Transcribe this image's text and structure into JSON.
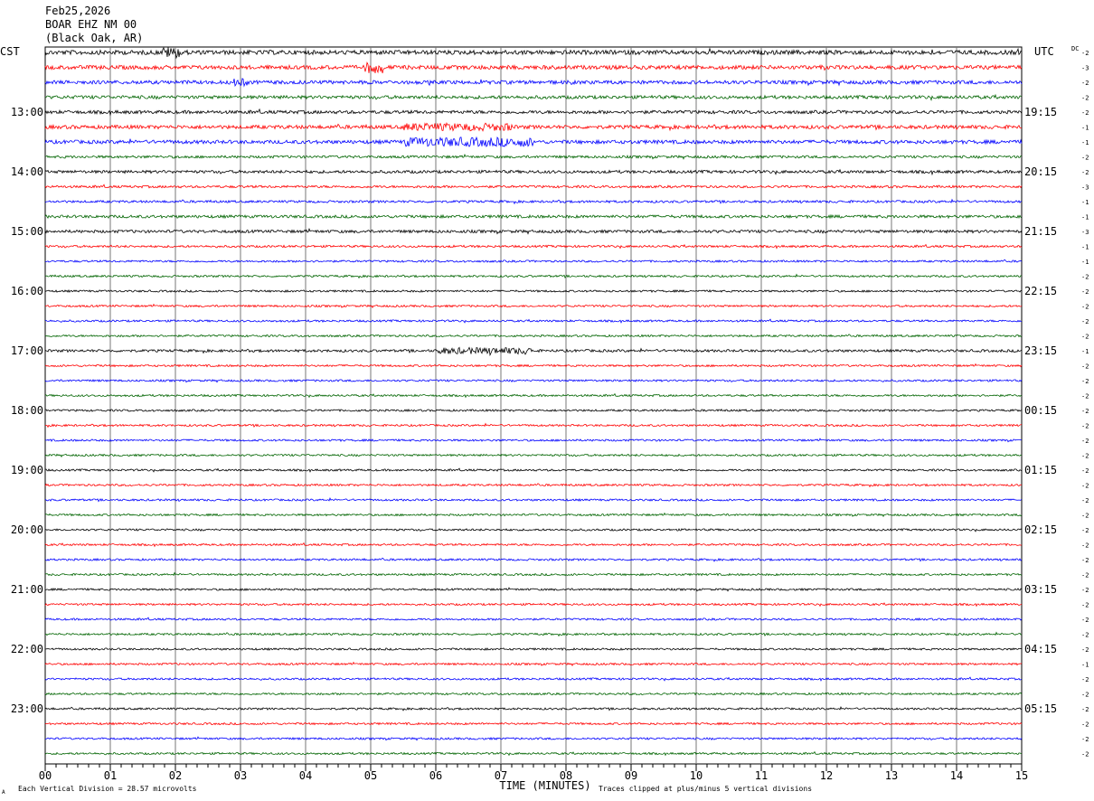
{
  "header": {
    "date": "Feb25,2026",
    "station": "BOAR EHZ NM 00",
    "location": "(Black Oak, AR)"
  },
  "labels": {
    "left_tz": "CST",
    "right_tz": "UTC",
    "dc": "DC",
    "x_axis_title": "TIME (MINUTES)",
    "footer_left": "Each Vertical Division =   28.57 microvolts",
    "footer_right": "Traces clipped at plus/minus 5 vertical divisions",
    "footer_mark": "A"
  },
  "colors": [
    "#000000",
    "#ff0000",
    "#0000ff",
    "#006400"
  ],
  "chart_data": {
    "type": "line",
    "description_free": true,
    "x": {
      "label": "TIME (MINUTES)",
      "range": [
        0,
        15
      ],
      "ticks": [
        "00",
        "01",
        "02",
        "03",
        "04",
        "05",
        "06",
        "07",
        "08",
        "09",
        "10",
        "11",
        "12",
        "13",
        "14",
        "15"
      ]
    },
    "traces_per_hour": 4,
    "trace_count": 48,
    "left_hour_labels": [
      "13:00",
      "14:00",
      "15:00",
      "16:00",
      "17:00",
      "18:00",
      "19:00",
      "20:00",
      "21:00",
      "22:00",
      "23:00"
    ],
    "right_hour_labels": [
      "19:15",
      "20:15",
      "21:15",
      "22:15",
      "23:15",
      "00:15",
      "01:15",
      "02:15",
      "03:15",
      "04:15",
      "05:15"
    ],
    "dc_offsets": [
      "-2",
      "-3",
      "-2",
      "-2",
      "-2",
      "-1",
      "-1",
      "-2",
      "-2",
      "-3",
      "-1",
      "-1",
      "-3",
      "-1",
      "-1",
      "-2",
      "-2",
      "-2",
      "-2",
      "-2",
      "-1",
      "-2",
      "-2",
      "-2",
      "-2",
      "-2",
      "-2",
      "-2",
      "-2",
      "-2",
      "-2",
      "-2",
      "-2",
      "-2",
      "-2",
      "-2",
      "-2",
      "-2",
      "-2",
      "-2",
      "-2",
      "-1",
      "-2",
      "-2",
      "-2",
      "-2",
      "-2",
      "-2"
    ],
    "amplitude_scale": [
      2.4,
      2.2,
      2.0,
      1.8,
      1.8,
      2.0,
      2.0,
      1.4,
      1.6,
      1.3,
      1.3,
      1.6,
      1.6,
      1.2,
      1.1,
      1.1,
      1.1,
      1.1,
      1.1,
      1.1,
      1.4,
      1.1,
      1.1,
      1.1,
      1.1,
      1.1,
      1.1,
      1.1,
      1.1,
      1.1,
      1.1,
      1.1,
      1.1,
      1.1,
      1.1,
      1.1,
      1.1,
      1.1,
      1.1,
      1.1,
      1.1,
      1.1,
      1.1,
      1.1,
      1.1,
      1.1,
      1.1,
      1.1
    ],
    "bursts": [
      {
        "trace": 0,
        "start": 1.8,
        "end": 2.1,
        "gain": 2.5
      },
      {
        "trace": 1,
        "start": 4.9,
        "end": 5.2,
        "gain": 3.0
      },
      {
        "trace": 2,
        "start": 2.9,
        "end": 3.1,
        "gain": 2.2
      },
      {
        "trace": 5,
        "start": 5.5,
        "end": 7.2,
        "gain": 2.2
      },
      {
        "trace": 6,
        "start": 5.5,
        "end": 7.5,
        "gain": 2.6
      },
      {
        "trace": 20,
        "start": 6.0,
        "end": 7.5,
        "gain": 2.6
      }
    ]
  }
}
